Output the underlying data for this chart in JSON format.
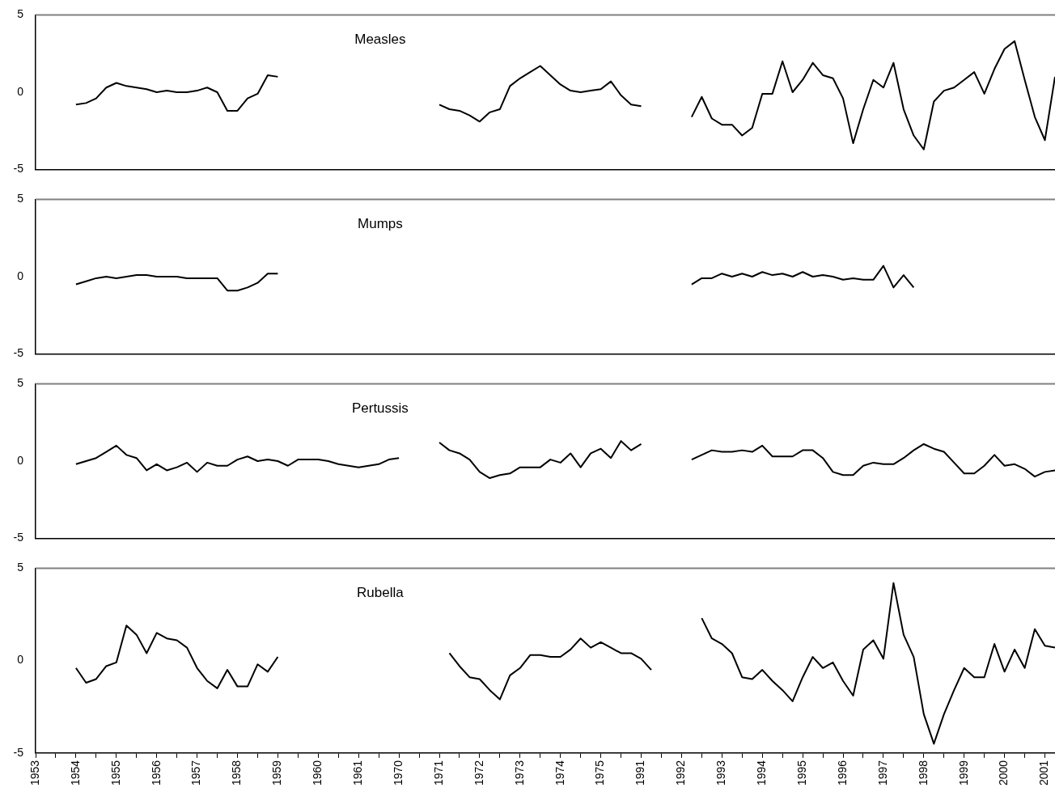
{
  "chart_data": [
    {
      "type": "line",
      "title": "Measles",
      "color": "#000000",
      "ylim": [
        -5,
        5
      ],
      "yticks": [
        -5,
        0,
        5
      ],
      "tick_labels": "y",
      "categories": [
        "1953",
        null,
        null,
        null,
        "1954",
        null,
        null,
        null,
        "1955",
        null,
        null,
        null,
        "1956",
        null,
        null,
        null,
        "1957",
        null,
        null,
        null,
        "1958",
        null,
        null,
        null,
        "1959",
        null,
        null,
        null,
        "1960",
        null,
        null,
        null,
        "1961",
        null,
        null,
        null,
        "1970",
        null,
        null,
        null,
        "1971",
        null,
        null,
        null,
        "1972",
        null,
        null,
        null,
        "1973",
        null,
        null,
        null,
        "1974",
        null,
        null,
        null,
        "1975",
        null,
        null,
        null,
        "1991",
        null,
        null,
        null,
        "1992",
        null,
        null,
        null,
        "1993",
        null,
        null,
        null,
        "1994",
        null,
        null,
        null,
        "1995",
        null,
        null,
        null,
        "1996",
        null,
        null,
        null,
        "1997",
        null,
        null,
        null,
        "1998",
        null,
        null,
        null,
        "1999",
        null,
        null,
        null,
        "2000",
        null,
        null,
        null,
        "2001",
        null
      ],
      "values": [
        null,
        null,
        null,
        null,
        -0.8,
        -0.7,
        -0.4,
        0.3,
        0.6,
        0.4,
        0.3,
        0.2,
        0,
        0.1,
        0,
        0,
        0.1,
        0.3,
        0,
        -1.2,
        -1.2,
        -0.4,
        -0.1,
        1.1,
        1.0,
        null,
        null,
        null,
        null,
        null,
        null,
        null,
        null,
        null,
        null,
        null,
        null,
        null,
        null,
        null,
        -0.8,
        -1.1,
        -1.2,
        -1.5,
        -1.9,
        -1.3,
        -1.1,
        0.4,
        0.9,
        1.3,
        1.7,
        1.1,
        0.5,
        0.1,
        0,
        0.1,
        0.2,
        0.7,
        -0.2,
        -0.8,
        -0.9,
        null,
        null,
        null,
        null,
        -1.6,
        -0.3,
        -1.7,
        -2.1,
        -2.1,
        -2.8,
        -2.3,
        -0.1,
        -0.1,
        2.0,
        0,
        0.8,
        1.9,
        1.1,
        0.9,
        -0.4,
        -3.3,
        -1.1,
        0.8,
        0.3,
        1.9,
        -1.1,
        -2.8,
        -3.7,
        -0.6,
        0.1,
        0.3,
        0.8,
        1.3,
        -0.1,
        1.5,
        2.8,
        3.3,
        0.8,
        -1.6,
        -3.1,
        1.0
      ]
    },
    {
      "type": "line",
      "title": "Mumps",
      "color": "#000000",
      "ylim": [
        -5,
        5
      ],
      "yticks": [
        -5,
        0,
        5
      ],
      "tick_labels": "y",
      "categories": [
        "1953",
        null,
        null,
        null,
        "1954",
        null,
        null,
        null,
        "1955",
        null,
        null,
        null,
        "1956",
        null,
        null,
        null,
        "1957",
        null,
        null,
        null,
        "1958",
        null,
        null,
        null,
        "1959",
        null,
        null,
        null,
        "1960",
        null,
        null,
        null,
        "1961",
        null,
        null,
        null,
        "1970",
        null,
        null,
        null,
        "1971",
        null,
        null,
        null,
        "1972",
        null,
        null,
        null,
        "1973",
        null,
        null,
        null,
        "1974",
        null,
        null,
        null,
        "1975",
        null,
        null,
        null,
        "1991",
        null,
        null,
        null,
        "1992",
        null,
        null,
        null,
        "1993",
        null,
        null,
        null,
        "1994",
        null,
        null,
        null,
        "1995",
        null,
        null,
        null,
        "1996",
        null,
        null,
        null,
        "1997",
        null,
        null,
        null,
        "1998",
        null,
        null,
        null,
        "1999",
        null,
        null,
        null,
        "2000",
        null,
        null,
        null,
        "2001",
        null
      ],
      "values": [
        null,
        null,
        null,
        null,
        -0.5,
        -0.3,
        -0.1,
        0,
        -0.1,
        0,
        0.1,
        0.1,
        0,
        0,
        0,
        -0.1,
        -0.1,
        -0.1,
        -0.1,
        -0.9,
        -0.9,
        -0.7,
        -0.4,
        0.2,
        0.2,
        null,
        null,
        null,
        null,
        null,
        null,
        null,
        null,
        null,
        null,
        null,
        null,
        null,
        null,
        null,
        null,
        null,
        null,
        null,
        null,
        null,
        null,
        null,
        null,
        null,
        null,
        null,
        null,
        null,
        null,
        null,
        null,
        null,
        null,
        null,
        null,
        null,
        null,
        null,
        null,
        -0.5,
        -0.1,
        -0.1,
        0.2,
        0,
        0.2,
        0,
        0.3,
        0.1,
        0.2,
        0,
        0.3,
        0,
        0.1,
        0,
        -0.2,
        -0.1,
        -0.2,
        -0.2,
        0.7,
        -0.7,
        0.1,
        -0.7,
        null,
        null,
        null,
        null,
        null,
        null,
        null,
        null,
        null,
        null,
        null,
        null,
        null,
        null
      ]
    },
    {
      "type": "line",
      "title": "Pertussis",
      "color": "#000000",
      "ylim": [
        -5,
        5
      ],
      "yticks": [
        -5,
        0,
        5
      ],
      "tick_labels": "y",
      "categories": [
        "1953",
        null,
        null,
        null,
        "1954",
        null,
        null,
        null,
        "1955",
        null,
        null,
        null,
        "1956",
        null,
        null,
        null,
        "1957",
        null,
        null,
        null,
        "1958",
        null,
        null,
        null,
        "1959",
        null,
        null,
        null,
        "1960",
        null,
        null,
        null,
        "1961",
        null,
        null,
        null,
        "1970",
        null,
        null,
        null,
        "1971",
        null,
        null,
        null,
        "1972",
        null,
        null,
        null,
        "1973",
        null,
        null,
        null,
        "1974",
        null,
        null,
        null,
        "1975",
        null,
        null,
        null,
        "1991",
        null,
        null,
        null,
        "1992",
        null,
        null,
        null,
        "1993",
        null,
        null,
        null,
        "1994",
        null,
        null,
        null,
        "1995",
        null,
        null,
        null,
        "1996",
        null,
        null,
        null,
        "1997",
        null,
        null,
        null,
        "1998",
        null,
        null,
        null,
        "1999",
        null,
        null,
        null,
        "2000",
        null,
        null,
        null,
        "2001",
        null
      ],
      "values": [
        null,
        null,
        null,
        null,
        -0.2,
        0,
        0.2,
        0.6,
        1.0,
        0.4,
        0.2,
        -0.6,
        -0.2,
        -0.6,
        -0.4,
        -0.1,
        -0.7,
        -0.1,
        -0.3,
        -0.3,
        0.1,
        0.3,
        0,
        0.1,
        0,
        -0.3,
        0.1,
        0.1,
        0.1,
        0,
        -0.2,
        -0.3,
        -0.4,
        -0.3,
        -0.2,
        0.1,
        0.2,
        null,
        null,
        null,
        1.2,
        0.7,
        0.5,
        0.1,
        -0.7,
        -1.1,
        -0.9,
        -0.8,
        -0.4,
        -0.4,
        -0.4,
        0.1,
        -0.1,
        0.5,
        -0.4,
        0.5,
        0.8,
        0.2,
        1.3,
        0.7,
        1.1,
        null,
        null,
        null,
        null,
        0.1,
        0.4,
        0.7,
        0.6,
        0.6,
        0.7,
        0.6,
        1.0,
        0.3,
        0.3,
        0.3,
        0.7,
        0.7,
        0.2,
        -0.7,
        -0.9,
        -0.9,
        -0.3,
        -0.1,
        -0.2,
        -0.2,
        0.2,
        0.7,
        1.1,
        0.8,
        0.6,
        -0.1,
        -0.8,
        -0.8,
        -0.3,
        0.4,
        -0.3,
        -0.2,
        -0.5,
        -1.0,
        -0.7,
        -0.6
      ]
    },
    {
      "type": "line",
      "title": "Rubella",
      "color": "#000000",
      "ylim": [
        -5,
        5
      ],
      "yticks": [
        -5,
        0,
        5
      ],
      "categories": [
        "1953",
        null,
        null,
        null,
        "1954",
        null,
        null,
        null,
        "1955",
        null,
        null,
        null,
        "1956",
        null,
        null,
        null,
        "1957",
        null,
        null,
        null,
        "1958",
        null,
        null,
        null,
        "1959",
        null,
        null,
        null,
        "1960",
        null,
        null,
        null,
        "1961",
        null,
        null,
        null,
        "1970",
        null,
        null,
        null,
        "1971",
        null,
        null,
        null,
        "1972",
        null,
        null,
        null,
        "1973",
        null,
        null,
        null,
        "1974",
        null,
        null,
        null,
        "1975",
        null,
        null,
        null,
        "1991",
        null,
        null,
        null,
        "1992",
        null,
        null,
        null,
        "1993",
        null,
        null,
        null,
        "1994",
        null,
        null,
        null,
        "1995",
        null,
        null,
        null,
        "1996",
        null,
        null,
        null,
        "1997",
        null,
        null,
        null,
        "1998",
        null,
        null,
        null,
        "1999",
        null,
        null,
        null,
        "2000",
        null,
        null,
        null,
        "2001",
        null
      ],
      "values": [
        null,
        null,
        null,
        null,
        -0.4,
        -1.2,
        -1.0,
        -0.3,
        -0.1,
        1.9,
        1.4,
        0.4,
        1.5,
        1.2,
        1.1,
        0.7,
        -0.4,
        -1.1,
        -1.5,
        -0.5,
        -1.4,
        -1.4,
        -0.2,
        -0.6,
        0.2,
        null,
        null,
        null,
        null,
        null,
        null,
        null,
        null,
        null,
        null,
        null,
        null,
        null,
        null,
        null,
        null,
        0.4,
        -0.3,
        -0.9,
        -1.0,
        -1.6,
        -2.1,
        -0.8,
        -0.4,
        0.3,
        0.3,
        0.2,
        0.2,
        0.6,
        1.2,
        0.7,
        1.0,
        0.7,
        0.4,
        0.4,
        0.1,
        -0.5,
        null,
        null,
        null,
        null,
        2.3,
        1.2,
        0.9,
        0.4,
        -0.9,
        -1.0,
        -0.5,
        -1.1,
        -1.6,
        -2.2,
        -0.9,
        0.2,
        -0.4,
        -0.1,
        -1.1,
        -1.9,
        0.6,
        1.1,
        0.1,
        4.2,
        1.4,
        0.2,
        -2.9,
        -4.5,
        -2.9,
        -1.6,
        -0.4,
        -0.9,
        -0.9,
        0.9,
        -0.6,
        0.6,
        -0.4,
        1.7,
        0.8,
        0.7
      ]
    }
  ]
}
